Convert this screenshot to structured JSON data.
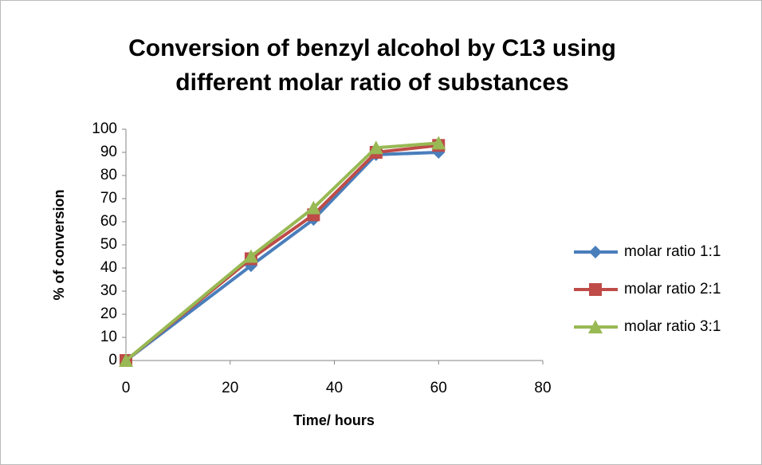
{
  "chart_data": {
    "type": "line",
    "title": [
      "Conversion of benzyl alcohol by C13 using",
      "different molar ratio of substances"
    ],
    "x_label": "Time/ hours",
    "y_label": "% of conversion",
    "x": [
      0,
      24,
      36,
      48,
      60
    ],
    "series": [
      {
        "name": "molar ratio 1:1",
        "color": "#4a7ebb",
        "marker": "diamond",
        "values": [
          0,
          41,
          61,
          89,
          90
        ]
      },
      {
        "name": "molar ratio 2:1",
        "color": "#be4b48",
        "marker": "square",
        "values": [
          0,
          44,
          63,
          90,
          93
        ]
      },
      {
        "name": "molar ratio 3:1",
        "color": "#98b954",
        "marker": "triangle",
        "values": [
          0,
          45,
          66,
          92,
          94
        ]
      }
    ],
    "xlim": [
      0,
      80
    ],
    "xticks": [
      0,
      20,
      40,
      60,
      80
    ],
    "ylim": [
      0,
      100
    ],
    "yticks": [
      0,
      10,
      20,
      30,
      40,
      50,
      60,
      70,
      80,
      90,
      100
    ],
    "legend": "right",
    "grid": false
  }
}
